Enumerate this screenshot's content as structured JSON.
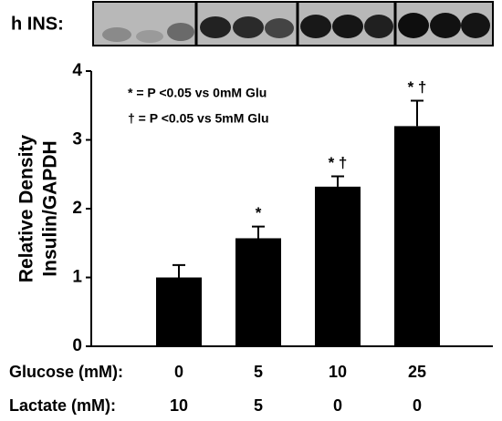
{
  "blot_label": "h INS:",
  "chart_data": {
    "type": "bar",
    "y_label": [
      "Relative Density",
      "Insulin/GAPDH"
    ],
    "legend_notes": [
      "* = P <0.05 vs 0mM Glu",
      "† = P <0.05 vs 5mM Glu"
    ],
    "x_row_labels": [
      "Glucose (mM):",
      "Lactate (mM):"
    ],
    "categories": [
      "0",
      "5",
      "10",
      "25"
    ],
    "lactate": [
      "10",
      "5",
      "0",
      "0"
    ],
    "values": [
      1.0,
      1.57,
      2.32,
      3.2
    ],
    "errors": [
      0.18,
      0.17,
      0.15,
      0.37
    ],
    "significance": [
      null,
      "*",
      "* †",
      "* †"
    ],
    "color": "#000000",
    "ylim": [
      0,
      4
    ],
    "yticks": [
      0,
      1,
      2,
      3,
      4
    ]
  }
}
